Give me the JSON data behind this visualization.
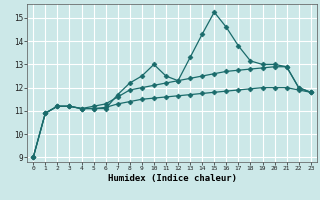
{
  "title": "",
  "xlabel": "Humidex (Indice chaleur)",
  "ylabel": "",
  "background_color": "#cce8e8",
  "grid_color": "#ffffff",
  "line_color": "#1a6b6b",
  "x_values": [
    0,
    1,
    2,
    3,
    4,
    5,
    6,
    7,
    8,
    9,
    10,
    11,
    12,
    13,
    14,
    15,
    16,
    17,
    18,
    19,
    20,
    21,
    22,
    23
  ],
  "line1": [
    9.0,
    10.9,
    11.2,
    11.2,
    11.1,
    11.1,
    11.1,
    11.7,
    12.2,
    12.5,
    13.0,
    12.5,
    12.3,
    13.3,
    14.3,
    15.25,
    14.6,
    13.8,
    13.15,
    13.0,
    13.0,
    12.9,
    12.0,
    11.8
  ],
  "line2": [
    9.0,
    10.9,
    11.2,
    11.2,
    11.1,
    11.2,
    11.3,
    11.6,
    11.9,
    12.0,
    12.1,
    12.2,
    12.3,
    12.4,
    12.5,
    12.6,
    12.7,
    12.75,
    12.8,
    12.85,
    12.9,
    12.9,
    12.0,
    11.8
  ],
  "line3": [
    9.0,
    10.9,
    11.2,
    11.2,
    11.1,
    11.1,
    11.15,
    11.3,
    11.4,
    11.5,
    11.55,
    11.6,
    11.65,
    11.7,
    11.75,
    11.8,
    11.85,
    11.9,
    11.95,
    12.0,
    12.0,
    12.0,
    11.9,
    11.8
  ],
  "ylim": [
    8.8,
    15.6
  ],
  "xlim": [
    -0.5,
    23.5
  ],
  "yticks": [
    9,
    10,
    11,
    12,
    13,
    14,
    15
  ],
  "xticks": [
    0,
    1,
    2,
    3,
    4,
    5,
    6,
    7,
    8,
    9,
    10,
    11,
    12,
    13,
    14,
    15,
    16,
    17,
    18,
    19,
    20,
    21,
    22,
    23
  ]
}
